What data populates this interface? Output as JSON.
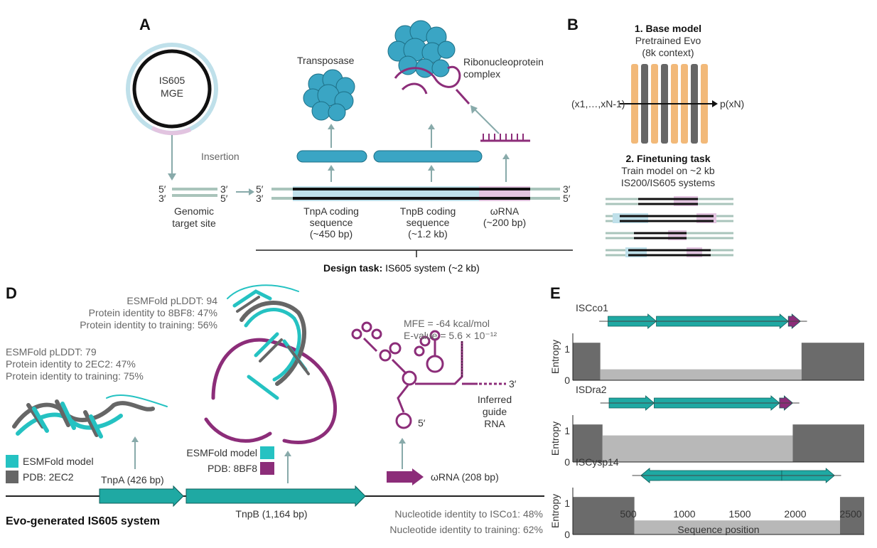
{
  "panels": {
    "a": "A",
    "b": "B",
    "d": "D",
    "e": "E"
  },
  "colors": {
    "teal": "#1fa9a3",
    "blue": "#3aa5c4",
    "purple": "#8c2d79",
    "dark_grey": "#666666",
    "light_blue": "#bfe0ea",
    "light_purple": "#e2c4e0",
    "orange": "#f2b979",
    "gene_line": "#a9c4bb"
  },
  "panel_a": {
    "mge_line1": "IS605",
    "mge_line2": "MGE",
    "insertion": "Insertion",
    "end5": "5′",
    "end3": "3′",
    "target_line1": "Genomic",
    "target_line2": "target site",
    "transposase": "Transposase",
    "rnp_line1": "Ribonucleoprotein",
    "rnp_line2": "complex",
    "tnpa_line1": "TnpA coding",
    "tnpa_line2": "sequence",
    "tnpa_line3": "(~450 bp)",
    "tnpb_line1": "TnpB coding",
    "tnpb_line2": "sequence",
    "tnpb_line3": "(~1.2 kb)",
    "wrna_line1": "ωRNA",
    "wrna_line2": "(~200 bp)",
    "design_bold": "Design task:",
    "design_rest": "IS605 system (~2 kb)"
  },
  "panel_b": {
    "base_title": "1. Base model",
    "base_line2": "Pretrained Evo",
    "base_line3": "(8k context)",
    "input": "(x1,…,xN-1)",
    "output": "p(xN)",
    "finetune_title": "2. Finetuning task",
    "finetune_line2": "Train model on ~2 kb",
    "finetune_line3": "IS200/IS605 systems"
  },
  "panel_d": {
    "tnpb_stats": [
      "ESMFold pLDDT: 94",
      "Protein identity to 8BF8: 47%",
      "Protein identity to training: 56%"
    ],
    "tnpa_stats": [
      "ESMFold pLDDT: 79",
      "Protein identity to 2EC2: 47%",
      "Protein identity to training: 75%"
    ],
    "mfe": "MFE = -64 kcal/mol",
    "evalue": "E-value = 5.6 × 10⁻¹²",
    "rna_5": "5′",
    "rna_3": "3′",
    "inferred_line1": "Inferred",
    "inferred_line2": "guide",
    "inferred_line3": "RNA",
    "legend_a_model": "ESMFold model",
    "legend_a_pdb": "PDB: 2EC2",
    "legend_b_model": "ESMFold model",
    "legend_b_pdb": "PDB: 8BF8",
    "tnpa_gene": "TnpA (426 bp)",
    "tnpb_gene": "TnpB (1,164 bp)",
    "wrna_gene": "ωRNA (208 bp)",
    "system_title": "Evo-generated IS605 system",
    "nt_identity1": "Nucleotide identity to ISCo1: 48%",
    "nt_identity2": "Nucleotide identity to training: 62%"
  },
  "panel_e": {
    "ylabel": "Entropy",
    "xlabel": "Sequence position",
    "xticks": [
      "500",
      "1000",
      "1500",
      "2000",
      "2500"
    ],
    "yticks": [
      "1",
      "0"
    ],
    "tracks": [
      {
        "name": "ISCco1"
      },
      {
        "name": "ISDra2"
      },
      {
        "name": "ISCysp14"
      }
    ]
  },
  "chart_data": {
    "type": "area",
    "xlabel": "Sequence position",
    "ylabel": "Entropy",
    "xlim": [
      0,
      2650
    ],
    "ylim": [
      0,
      1.5
    ],
    "series": [
      {
        "name": "ISCco1",
        "genes": [
          [
            320,
            760,
            "+",
            "teal"
          ],
          [
            760,
            1960,
            "+",
            "teal"
          ],
          [
            1960,
            2070,
            "+",
            "purple"
          ]
        ],
        "segments": [
          [
            0,
            250,
            1.2
          ],
          [
            250,
            2080,
            0.35
          ],
          [
            2080,
            2650,
            1.2
          ]
        ]
      },
      {
        "name": "ISDra2",
        "genes": [
          [
            330,
            740,
            "+",
            "teal"
          ],
          [
            740,
            1880,
            "+",
            "teal"
          ],
          [
            1880,
            2000,
            "+",
            "purple"
          ]
        ],
        "segments": [
          [
            0,
            270,
            1.2
          ],
          [
            270,
            2000,
            0.85
          ],
          [
            2000,
            2650,
            1.2
          ]
        ]
      },
      {
        "name": "ISCysp14",
        "genes": [
          [
            620,
            790,
            "-",
            "purple"
          ],
          [
            620,
            1900,
            "-",
            "teal"
          ],
          [
            1900,
            2380,
            "+",
            "teal"
          ]
        ],
        "segments": [
          [
            0,
            560,
            1.2
          ],
          [
            560,
            2430,
            0.45
          ],
          [
            2430,
            2650,
            1.2
          ]
        ]
      }
    ]
  }
}
